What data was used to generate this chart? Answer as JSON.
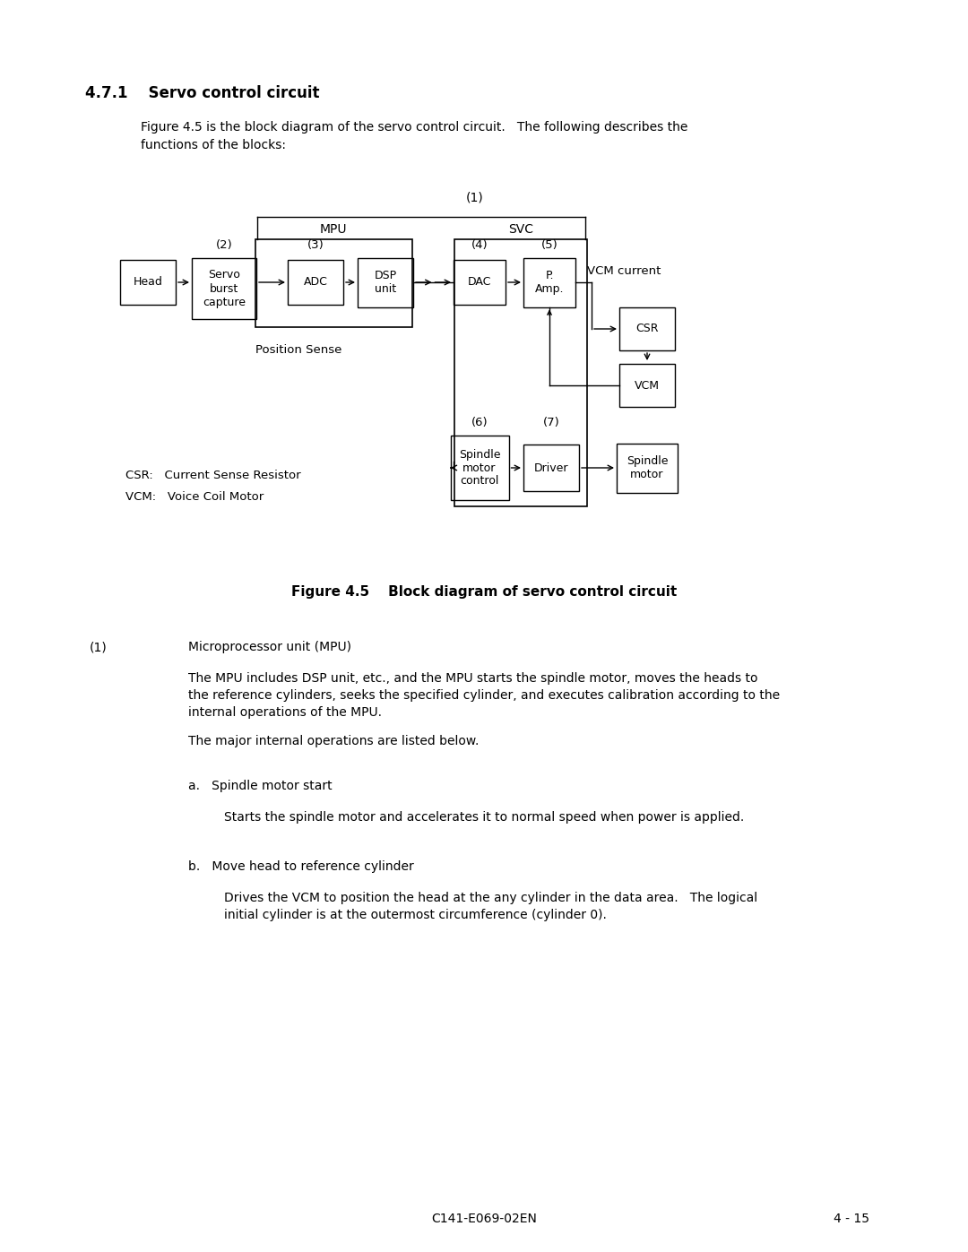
{
  "title": "4.7.1    Servo control circuit",
  "fig_caption": "Figure 4.5    Block diagram of servo control circuit",
  "intro_line1": "Figure 4.5 is the block diagram of the servo control circuit.   The following describes the",
  "intro_line2": "functions of the blocks:",
  "section1_header_num": "(1)",
  "section1_header_text": "Microprocessor unit (MPU)",
  "section1_body_line1": "The MPU includes DSP unit, etc., and the MPU starts the spindle motor, moves the heads to",
  "section1_body_line2": "the reference cylinders, seeks the specified cylinder, and executes calibration according to the",
  "section1_body_line3": "internal operations of the MPU.",
  "section1_body_line4": "The major internal operations are listed below.",
  "item_a_header": "a.   Spindle motor start",
  "item_a_body": "Starts the spindle motor and accelerates it to normal speed when power is applied.",
  "item_b_header": "b.   Move head to reference cylinder",
  "item_b_body_line1": "Drives the VCM to position the head at the any cylinder in the data area.   The logical",
  "item_b_body_line2": "initial cylinder is at the outermost circumference (cylinder 0).",
  "footer_left": "C141-E069-02EN",
  "footer_right": "4 - 15",
  "background": "#ffffff"
}
